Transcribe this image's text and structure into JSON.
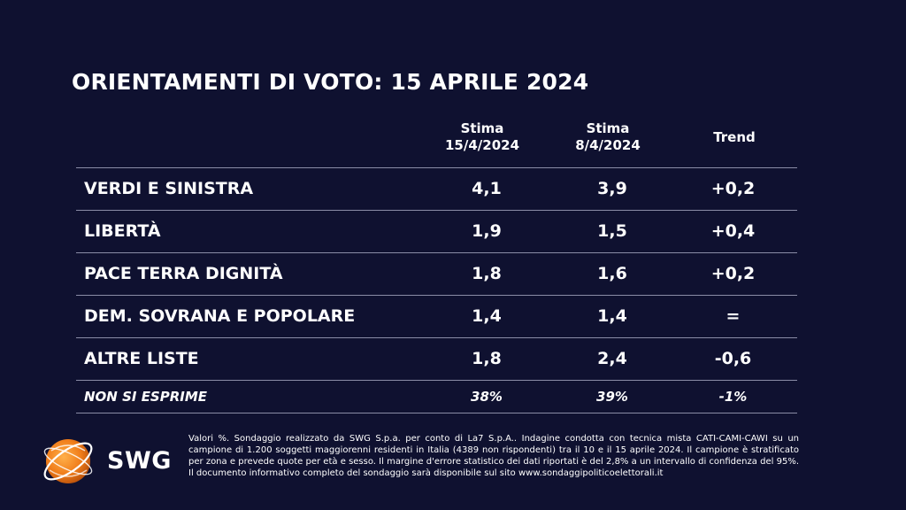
{
  "title": "ORIENTAMENTI DI VOTO: 15 APRILE 2024",
  "headers": {
    "current_line1": "Stima",
    "current_line2": "15/4/2024",
    "previous_line1": "Stima",
    "previous_line2": "8/4/2024",
    "trend": "Trend"
  },
  "rows": [
    {
      "party": "VERDI E SINISTRA",
      "current": "4,1",
      "previous": "3,9",
      "trend": "+0,2"
    },
    {
      "party": "LIBERTÀ",
      "current": "1,9",
      "previous": "1,5",
      "trend": "+0,4"
    },
    {
      "party": "PACE TERRA DIGNITÀ",
      "current": "1,8",
      "previous": "1,6",
      "trend": "+0,2"
    },
    {
      "party": "DEM. SOVRANA E POPOLARE",
      "current": "1,4",
      "previous": "1,4",
      "trend": "="
    },
    {
      "party": "ALTRE LISTE",
      "current": "1,8",
      "previous": "2,4",
      "trend": "-0,6"
    }
  ],
  "non_esprime": {
    "party": "NON SI ESPRIME",
    "current": "38%",
    "previous": "39%",
    "trend": "-1%"
  },
  "logo": {
    "text": "SWG",
    "icon": "swg-globe-icon",
    "color": "#f07d1a"
  },
  "note": "Valori %. Sondaggio realizzato da SWG S.p.a. per conto di La7 S.p.A.. Indagine condotta con tecnica mista CATI-CAMI-CAWI su un campione di 1.200 soggetti maggiorenni residenti in Italia (4389 non rispondenti) tra il 10 e il 15 aprile 2024. Il campione è stratificato per zona e prevede quote per età e sesso. Il margine d'errore statistico dei dati riportati è del 2,8% a un intervallo di confidenza del 95%. Il documento informativo completo del sondaggio sarà disponibile sul sito www.sondaggipoliticoelettorali.it",
  "colors": {
    "background": "#0f1130",
    "text": "#ffffff",
    "divider": "#8a8ca6",
    "accent": "#f07d1a"
  }
}
